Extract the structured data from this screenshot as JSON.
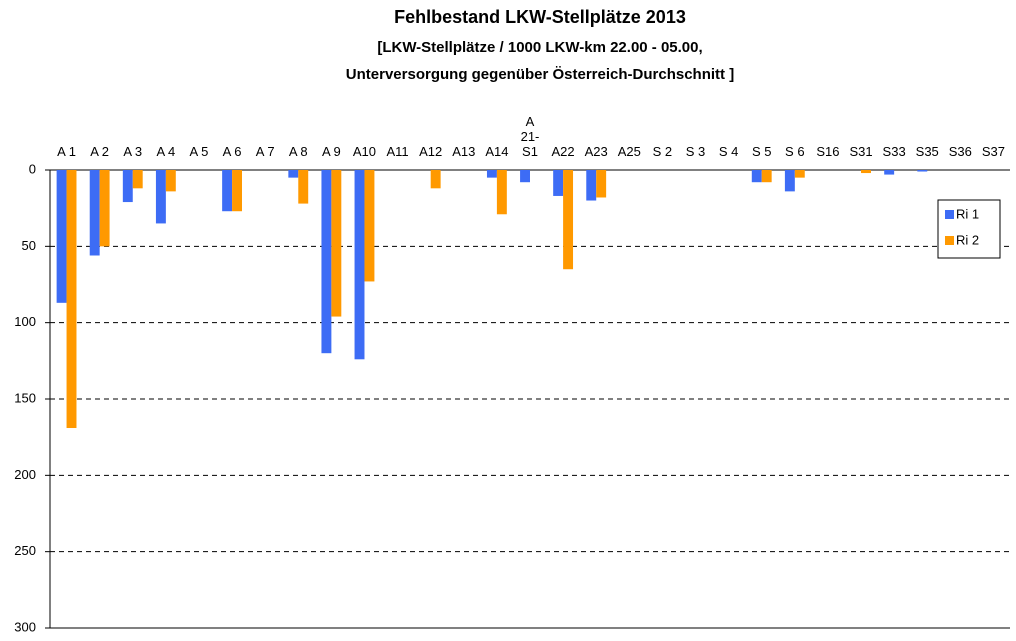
{
  "chart_data": {
    "type": "bar",
    "title": "Fehlbestand LKW-Stellplätze 2013",
    "subtitle": [
      "[LKW-Stellplätze / 1000 LKW-km 22.00 - 05.00,",
      "Unterversorgung gegenüber Österreich-Durchschnitt ]"
    ],
    "categories": [
      "A 1",
      "A 2",
      "A 3",
      "A 4",
      "A 5",
      "A 6",
      "A 7",
      "A 8",
      "A 9",
      "A10",
      "A11",
      "A12",
      "A13",
      "A14",
      "A 21-S1",
      "A22",
      "A23",
      "A25",
      "S 2",
      "S 3",
      "S 4",
      "S 5",
      "S 6",
      "S16",
      "S31",
      "S33",
      "S35",
      "S36",
      "S37"
    ],
    "series": [
      {
        "name": "Ri 1",
        "color": "#3d6cf5",
        "values": [
          87,
          56,
          21,
          35,
          0,
          27,
          0,
          5,
          120,
          124,
          0,
          0,
          0,
          5,
          8,
          17,
          20,
          0,
          0,
          0,
          0,
          8,
          14,
          0,
          0,
          3,
          1,
          0,
          0
        ]
      },
      {
        "name": "Ri 2",
        "color": "#ff9900",
        "values": [
          169,
          50,
          12,
          14,
          0,
          27,
          0,
          22,
          96,
          73,
          0,
          12,
          0,
          29,
          0,
          65,
          18,
          0,
          0,
          0,
          0,
          8,
          5,
          0,
          2,
          0,
          0,
          0,
          0
        ]
      }
    ],
    "ylim": [
      0,
      300
    ],
    "yticks": [
      0,
      50,
      100,
      150,
      200,
      250,
      300
    ],
    "y_inverted": true,
    "grid": true,
    "legend": "right"
  }
}
